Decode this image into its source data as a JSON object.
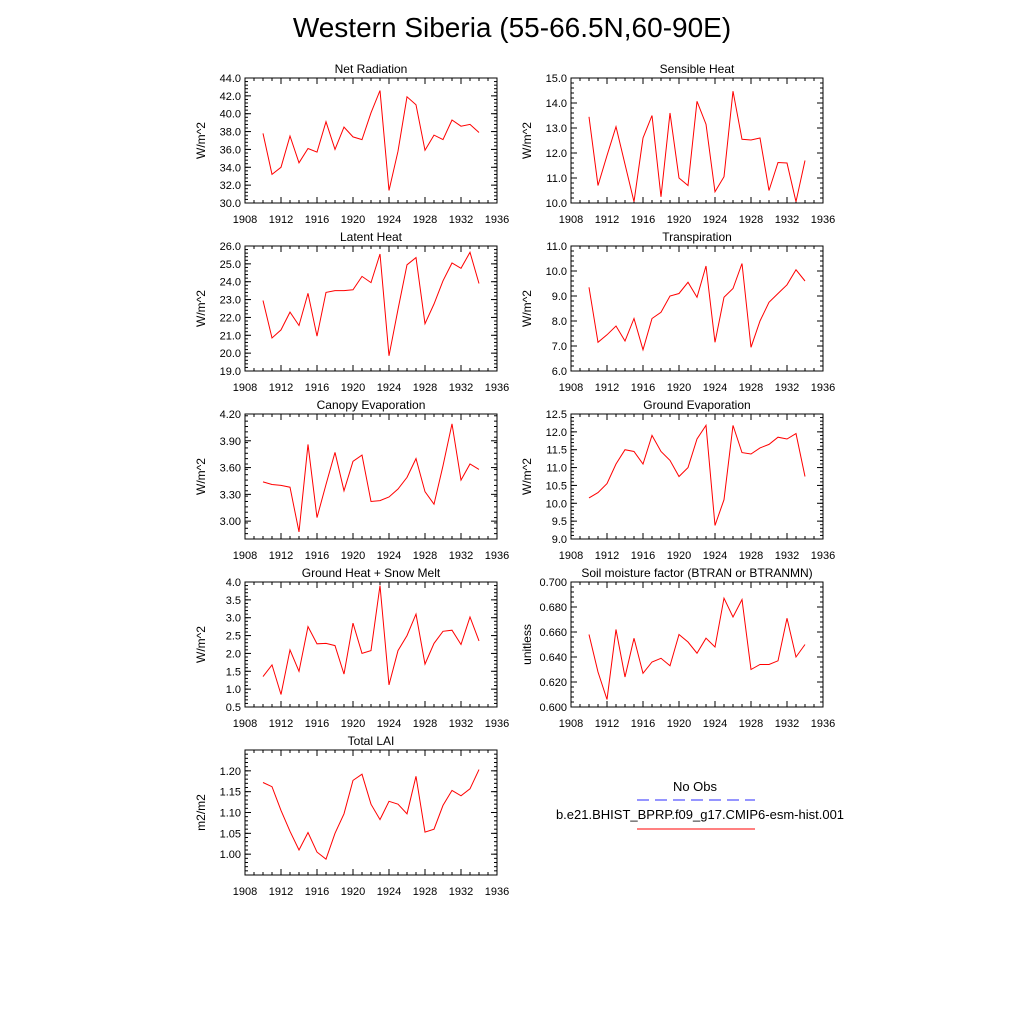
{
  "title": "Western Siberia (55-66.5N,60-90E)",
  "legend": {
    "obs_label": "No Obs",
    "model_label": "b.e21.BHIST_BPRP.f09_g17.CMIP6-esm-hist.001",
    "obs_color": "#2b2bff",
    "model_color": "#ff0000"
  },
  "chart_data": [
    {
      "type": "line",
      "title": "Net Radiation",
      "ylabel": "W/m^2",
      "xlim": [
        1908,
        1936
      ],
      "xticks": [
        "1908",
        "1912",
        "1916",
        "1920",
        "1924",
        "1928",
        "1932",
        "1936"
      ],
      "ylim": [
        30.0,
        44.0
      ],
      "yticks": [
        "30.0",
        "32.0",
        "34.0",
        "36.0",
        "38.0",
        "40.0",
        "42.0",
        "44.0"
      ],
      "x": [
        1910,
        1911,
        1912,
        1913,
        1914,
        1915,
        1916,
        1917,
        1918,
        1919,
        1920,
        1921,
        1922,
        1923,
        1924,
        1925,
        1926,
        1927,
        1928,
        1929,
        1930,
        1931,
        1932,
        1933,
        1934
      ],
      "values": [
        37.8,
        33.2,
        34.0,
        37.5,
        34.5,
        36.1,
        35.7,
        39.1,
        36.0,
        38.5,
        37.4,
        37.1,
        40.1,
        42.6,
        31.4,
        35.8,
        41.9,
        41.0,
        35.9,
        37.6,
        37.1,
        39.3,
        38.6,
        38.8,
        37.9
      ]
    },
    {
      "type": "line",
      "title": "Sensible Heat",
      "ylabel": "W/m^2",
      "xlim": [
        1908,
        1936
      ],
      "xticks": [
        "1908",
        "1912",
        "1916",
        "1920",
        "1924",
        "1928",
        "1932",
        "1936"
      ],
      "ylim": [
        10.0,
        15.0
      ],
      "yticks": [
        "10.0",
        "11.0",
        "12.0",
        "13.0",
        "14.0",
        "15.0"
      ],
      "x": [
        1910,
        1911,
        1912,
        1913,
        1914,
        1915,
        1916,
        1917,
        1918,
        1919,
        1920,
        1921,
        1922,
        1923,
        1924,
        1925,
        1926,
        1927,
        1928,
        1929,
        1930,
        1931,
        1932,
        1933,
        1934
      ],
      "values": [
        13.45,
        10.7,
        11.9,
        13.05,
        11.55,
        10.05,
        12.6,
        13.5,
        10.25,
        13.6,
        11.0,
        10.7,
        14.07,
        13.15,
        10.45,
        11.05,
        14.47,
        12.55,
        12.52,
        12.6,
        10.5,
        11.62,
        11.6,
        10.05,
        11.7
      ]
    },
    {
      "type": "line",
      "title": "Latent Heat",
      "ylabel": "W/m^2",
      "xlim": [
        1908,
        1936
      ],
      "xticks": [
        "1908",
        "1912",
        "1916",
        "1920",
        "1924",
        "1928",
        "1932",
        "1936"
      ],
      "ylim": [
        19.0,
        26.0
      ],
      "yticks": [
        "19.0",
        "20.0",
        "21.0",
        "22.0",
        "23.0",
        "24.0",
        "25.0",
        "26.0"
      ],
      "x": [
        1910,
        1911,
        1912,
        1913,
        1914,
        1915,
        1916,
        1917,
        1918,
        1919,
        1920,
        1921,
        1922,
        1923,
        1924,
        1925,
        1926,
        1927,
        1928,
        1929,
        1930,
        1931,
        1932,
        1933,
        1934
      ],
      "values": [
        22.95,
        20.85,
        21.3,
        22.3,
        21.55,
        23.35,
        20.95,
        23.4,
        23.5,
        23.5,
        23.55,
        24.3,
        23.95,
        25.55,
        19.85,
        22.45,
        24.95,
        25.35,
        21.65,
        22.75,
        24.05,
        25.05,
        24.75,
        25.65,
        23.9
      ]
    },
    {
      "type": "line",
      "title": "Transpiration",
      "ylabel": "W/m^2",
      "xlim": [
        1908,
        1936
      ],
      "xticks": [
        "1908",
        "1912",
        "1916",
        "1920",
        "1924",
        "1928",
        "1932",
        "1936"
      ],
      "ylim": [
        6.0,
        11.0
      ],
      "yticks": [
        "6.0",
        "7.0",
        "8.0",
        "9.0",
        "10.0",
        "11.0"
      ],
      "x": [
        1910,
        1911,
        1912,
        1913,
        1914,
        1915,
        1916,
        1917,
        1918,
        1919,
        1920,
        1921,
        1922,
        1923,
        1924,
        1925,
        1926,
        1927,
        1928,
        1929,
        1930,
        1931,
        1932,
        1933,
        1934
      ],
      "values": [
        9.35,
        7.15,
        7.45,
        7.8,
        7.2,
        8.1,
        6.85,
        8.1,
        8.35,
        9.0,
        9.1,
        9.55,
        8.95,
        10.2,
        7.15,
        8.95,
        9.3,
        10.3,
        6.95,
        8.0,
        8.75,
        9.1,
        9.45,
        10.05,
        9.6
      ]
    },
    {
      "type": "line",
      "title": "Canopy Evaporation",
      "ylabel": "W/m^2",
      "xlim": [
        1908,
        1936
      ],
      "xticks": [
        "1908",
        "1912",
        "1916",
        "1920",
        "1924",
        "1928",
        "1932",
        "1936"
      ],
      "ylim": [
        2.8,
        4.2
      ],
      "yticks": [
        "3.00",
        "3.30",
        "3.60",
        "3.90",
        "4.20"
      ],
      "x": [
        1910,
        1911,
        1912,
        1913,
        1914,
        1915,
        1916,
        1917,
        1918,
        1919,
        1920,
        1921,
        1922,
        1923,
        1924,
        1925,
        1926,
        1927,
        1928,
        1929,
        1930,
        1931,
        1932,
        1933,
        1934
      ],
      "values": [
        3.44,
        3.41,
        3.4,
        3.38,
        2.88,
        3.86,
        3.04,
        3.41,
        3.77,
        3.34,
        3.67,
        3.74,
        3.22,
        3.23,
        3.27,
        3.36,
        3.49,
        3.7,
        3.33,
        3.19,
        3.62,
        4.09,
        3.46,
        3.64,
        3.58
      ]
    },
    {
      "type": "line",
      "title": "Ground Evaporation",
      "ylabel": "W/m^2",
      "xlim": [
        1908,
        1936
      ],
      "xticks": [
        "1908",
        "1912",
        "1916",
        "1920",
        "1924",
        "1928",
        "1932",
        "1936"
      ],
      "ylim": [
        9.0,
        12.5
      ],
      "yticks": [
        "9.0",
        "9.5",
        "10.0",
        "10.5",
        "11.0",
        "11.5",
        "12.0",
        "12.5"
      ],
      "x": [
        1910,
        1911,
        1912,
        1913,
        1914,
        1915,
        1916,
        1917,
        1918,
        1919,
        1920,
        1921,
        1922,
        1923,
        1924,
        1925,
        1926,
        1927,
        1928,
        1929,
        1930,
        1931,
        1932,
        1933,
        1934
      ],
      "values": [
        10.15,
        10.3,
        10.55,
        11.1,
        11.5,
        11.45,
        11.1,
        11.9,
        11.45,
        11.2,
        10.75,
        11.0,
        11.8,
        12.18,
        9.38,
        10.1,
        12.18,
        11.42,
        11.38,
        11.55,
        11.65,
        11.85,
        11.8,
        11.95,
        10.75
      ]
    },
    {
      "type": "line",
      "title": "Ground Heat + Snow Melt",
      "ylabel": "W/m^2",
      "xlim": [
        1908,
        1936
      ],
      "xticks": [
        "1908",
        "1912",
        "1916",
        "1920",
        "1924",
        "1928",
        "1932",
        "1936"
      ],
      "ylim": [
        0.5,
        4.0
      ],
      "yticks": [
        "0.5",
        "1.0",
        "1.5",
        "2.0",
        "2.5",
        "3.0",
        "3.5",
        "4.0"
      ],
      "x": [
        1910,
        1911,
        1912,
        1913,
        1914,
        1915,
        1916,
        1917,
        1918,
        1919,
        1920,
        1921,
        1922,
        1923,
        1924,
        1925,
        1926,
        1927,
        1928,
        1929,
        1930,
        1931,
        1932,
        1933,
        1934
      ],
      "values": [
        1.35,
        1.68,
        0.85,
        2.1,
        1.5,
        2.75,
        2.27,
        2.28,
        2.22,
        1.42,
        2.85,
        2.0,
        2.08,
        3.9,
        1.12,
        2.08,
        2.5,
        3.1,
        1.7,
        2.28,
        2.62,
        2.65,
        2.25,
        3.02,
        2.35
      ]
    },
    {
      "type": "line",
      "title": "Soil moisture factor (BTRAN or BTRANMN)",
      "ylabel": "unitless",
      "xlim": [
        1908,
        1936
      ],
      "xticks": [
        "1908",
        "1912",
        "1916",
        "1920",
        "1924",
        "1928",
        "1932",
        "1936"
      ],
      "ylim": [
        0.6,
        0.7
      ],
      "yticks": [
        "0.600",
        "0.620",
        "0.640",
        "0.660",
        "0.680",
        "0.700"
      ],
      "x": [
        1910,
        1911,
        1912,
        1913,
        1914,
        1915,
        1916,
        1917,
        1918,
        1919,
        1920,
        1921,
        1922,
        1923,
        1924,
        1925,
        1926,
        1927,
        1928,
        1929,
        1930,
        1931,
        1932,
        1933,
        1934
      ],
      "values": [
        0.658,
        0.628,
        0.606,
        0.662,
        0.624,
        0.655,
        0.627,
        0.636,
        0.639,
        0.633,
        0.658,
        0.652,
        0.643,
        0.655,
        0.648,
        0.687,
        0.672,
        0.686,
        0.63,
        0.634,
        0.634,
        0.637,
        0.671,
        0.64,
        0.65
      ]
    },
    {
      "type": "line",
      "title": "Total LAI",
      "ylabel": "m2/m2",
      "xlim": [
        1908,
        1936
      ],
      "xticks": [
        "1908",
        "1912",
        "1916",
        "1920",
        "1924",
        "1928",
        "1932",
        "1936"
      ],
      "ylim": [
        0.95,
        1.25
      ],
      "yticks": [
        "1.00",
        "1.05",
        "1.10",
        "1.15",
        "1.20"
      ],
      "x": [
        1910,
        1911,
        1912,
        1913,
        1914,
        1915,
        1916,
        1917,
        1918,
        1919,
        1920,
        1921,
        1922,
        1923,
        1924,
        1925,
        1926,
        1927,
        1928,
        1929,
        1930,
        1931,
        1932,
        1933,
        1934
      ],
      "values": [
        1.172,
        1.162,
        1.105,
        1.055,
        1.01,
        1.052,
        1.005,
        0.988,
        1.05,
        1.097,
        1.177,
        1.192,
        1.12,
        1.083,
        1.127,
        1.12,
        1.097,
        1.187,
        1.053,
        1.06,
        1.117,
        1.153,
        1.14,
        1.157,
        1.203
      ]
    }
  ]
}
